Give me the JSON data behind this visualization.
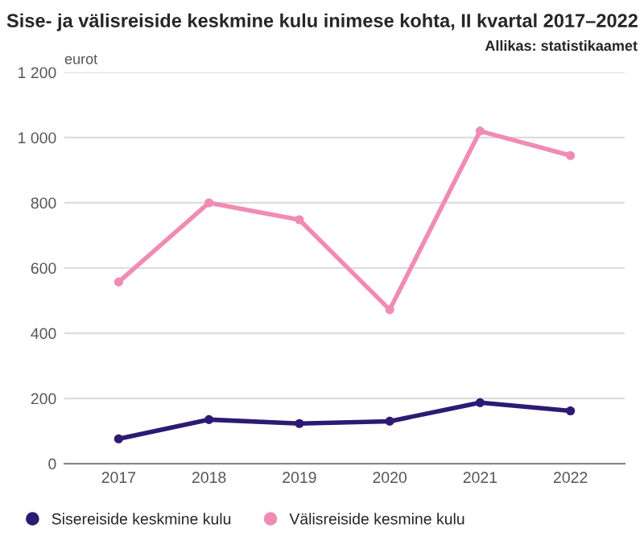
{
  "chart_data": {
    "type": "line",
    "title": "Sise- ja välisreiside keskmine kulu inimese kohta, II kvartal 2017–2022",
    "ylabel": "eurot",
    "annotations": [
      "Allikas: statistikaamet"
    ],
    "categories": [
      "2017",
      "2018",
      "2019",
      "2020",
      "2021",
      "2022"
    ],
    "series": [
      {
        "name": "Sisereiside keskmine kulu",
        "color": "#2d1a73",
        "values": [
          76,
          135,
          123,
          130,
          187,
          162
        ]
      },
      {
        "name": "Välisreiside kesmine kulu",
        "color": "#f08cb4",
        "values": [
          557,
          800,
          748,
          472,
          1020,
          945
        ]
      }
    ],
    "ylim": [
      0,
      1200
    ],
    "yticks": [
      0,
      200,
      400,
      600,
      800,
      {
        "value": 1000,
        "label": "1 000"
      },
      {
        "value": 1200,
        "label": "1 200"
      }
    ],
    "grid": "y",
    "legend": "bottom",
    "marker": "circle",
    "line_style": "solid"
  }
}
